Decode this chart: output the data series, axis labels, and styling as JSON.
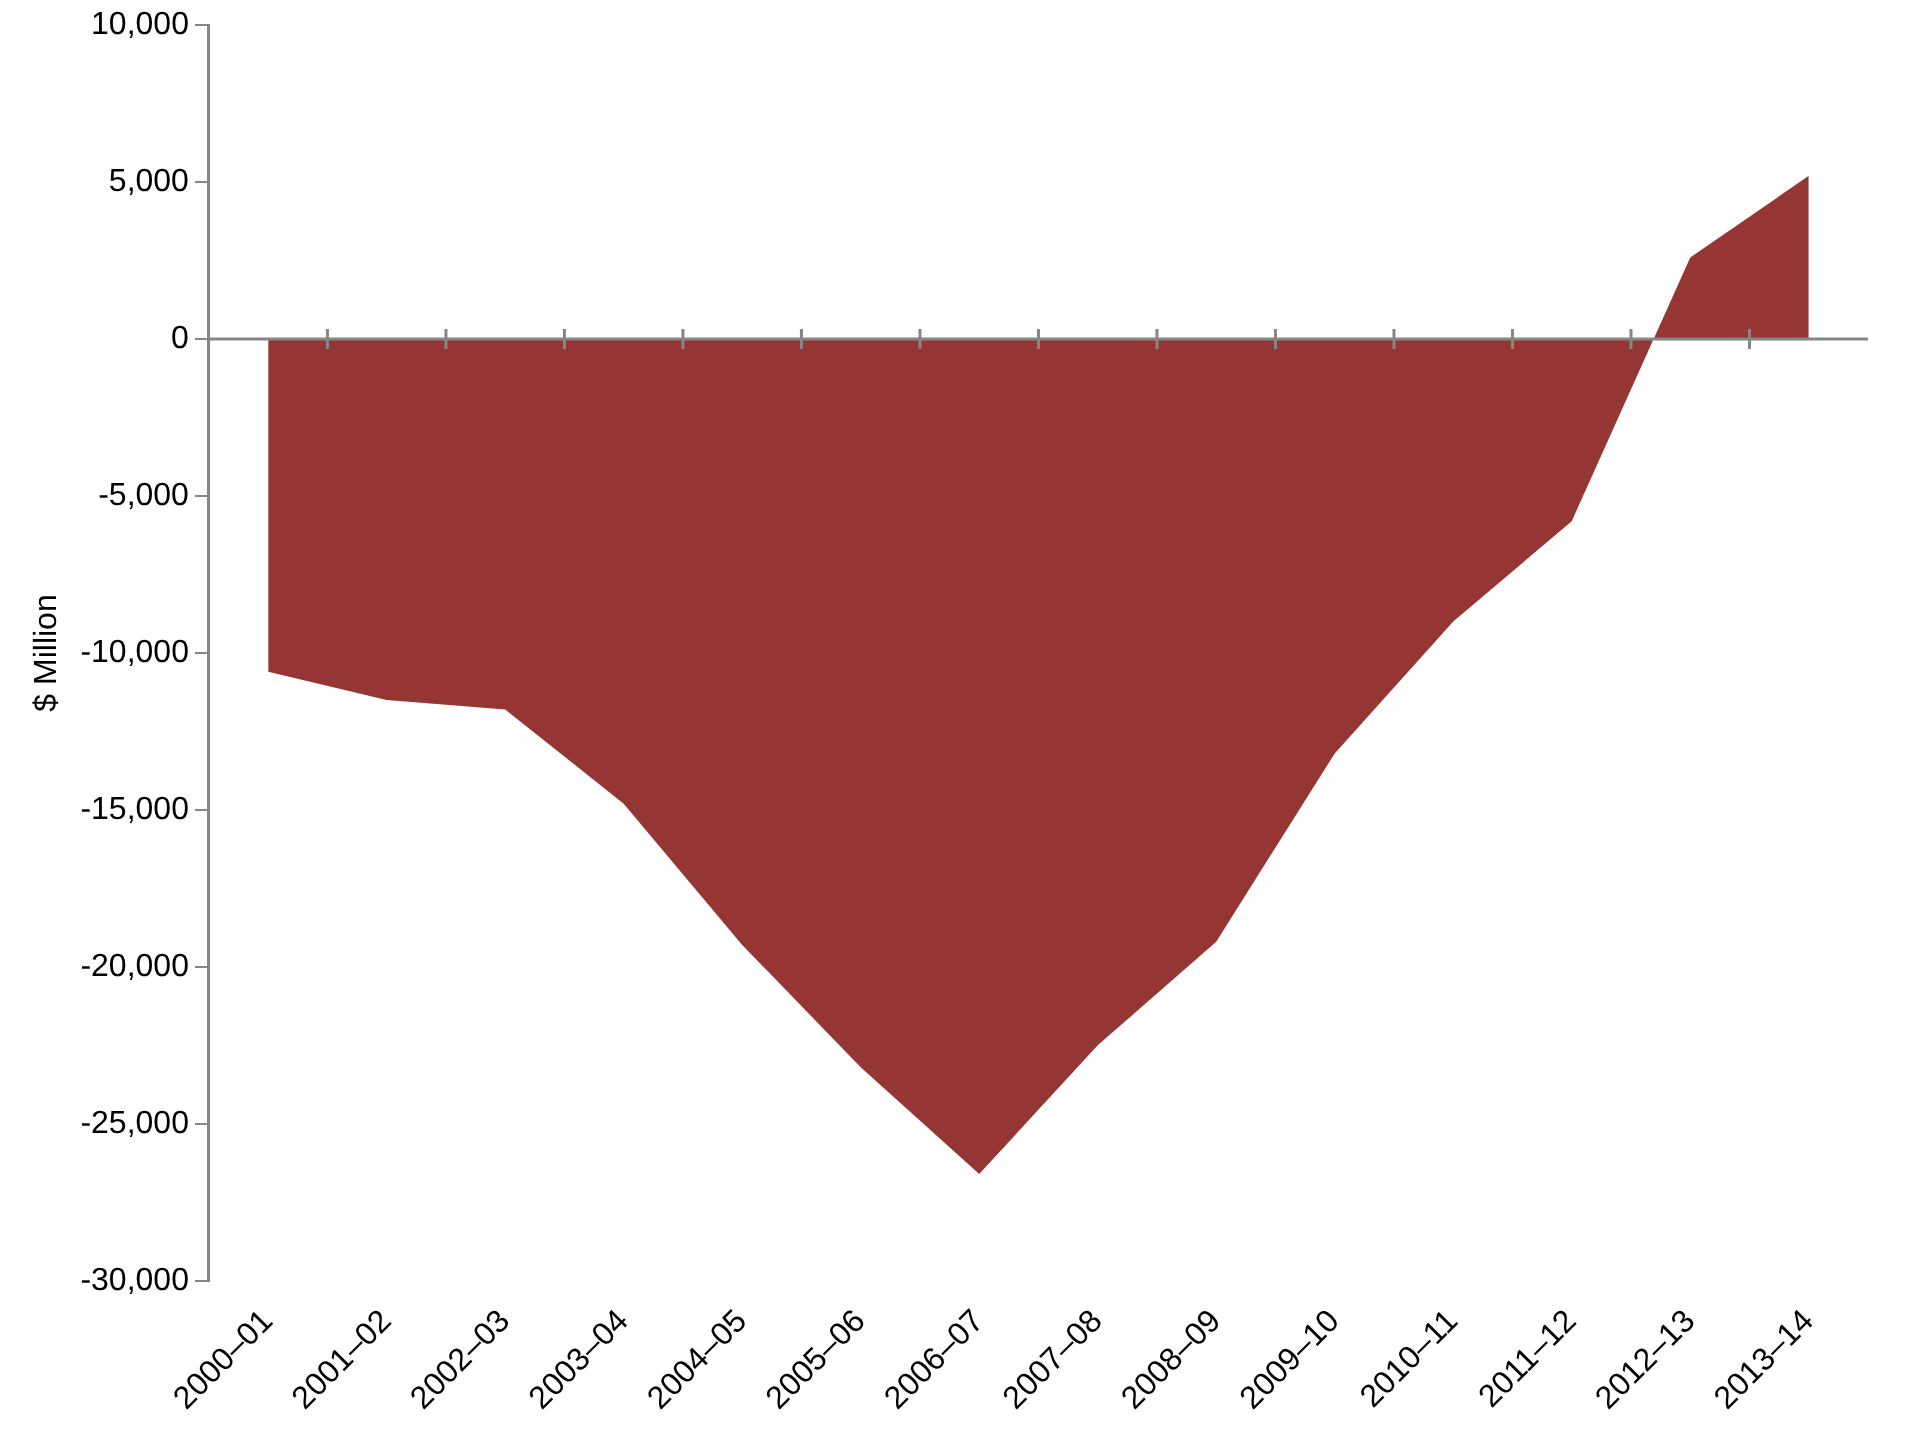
{
  "chart_data": {
    "type": "area",
    "ylabel": "$ Million",
    "categories": [
      "2000–01",
      "2001–02",
      "2002–03",
      "2003–04",
      "2004–05",
      "2005–06",
      "2006–07",
      "2007–08",
      "2008–09",
      "2009–10",
      "2010–11",
      "2011–12",
      "2012–13",
      "2013–14"
    ],
    "values": [
      -10600,
      -11500,
      -11800,
      -14800,
      -19300,
      -23200,
      -26600,
      -22500,
      -19200,
      -13200,
      -9000,
      -5800,
      2600,
      5200
    ],
    "color": "#963634",
    "ylim": [
      -30000,
      10000
    ],
    "yticks": [
      {
        "value": -30000,
        "label": "-30,000"
      },
      {
        "value": -25000,
        "label": "-25,000"
      },
      {
        "value": -20000,
        "label": "-20,000"
      },
      {
        "value": -15000,
        "label": "-15,000"
      },
      {
        "value": -10000,
        "label": "-10,000"
      },
      {
        "value": -5000,
        "label": "-5,000"
      },
      {
        "value": 0,
        "label": "0"
      },
      {
        "value": 5000,
        "label": "5,000"
      },
      {
        "value": 10000,
        "label": "10,000"
      }
    ]
  }
}
